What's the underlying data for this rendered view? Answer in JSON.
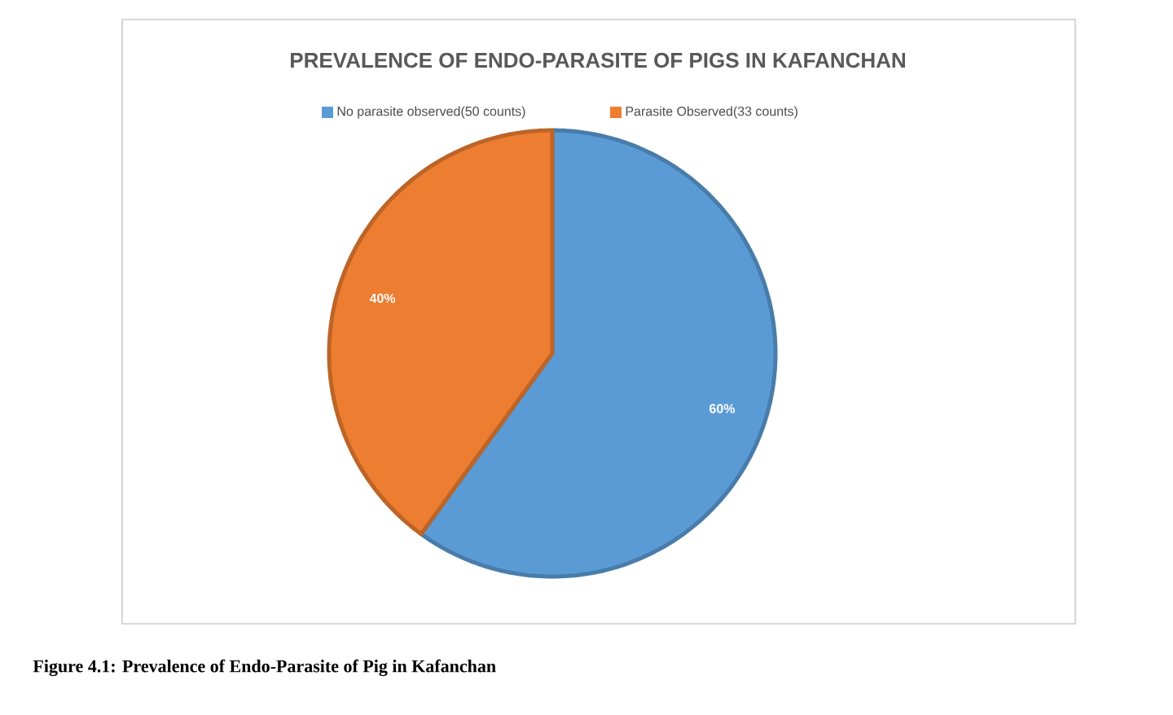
{
  "chart_data": {
    "type": "pie",
    "title": "PREVALENCE OF ENDO-PARASITE OF PIGS IN KAFANCHAN",
    "categories": [
      "No parasite observed(50 counts)",
      "Parasite Observed(33 counts)"
    ],
    "values": [
      60,
      40
    ],
    "value_labels": [
      "60%",
      "40%"
    ],
    "colors": [
      "#5b9bd5",
      "#ed7d31"
    ],
    "legend": "top",
    "annotations": [
      "Figure 4.1: Prevalence of Endo-Parasite of Pig in Kafanchan"
    ]
  }
}
